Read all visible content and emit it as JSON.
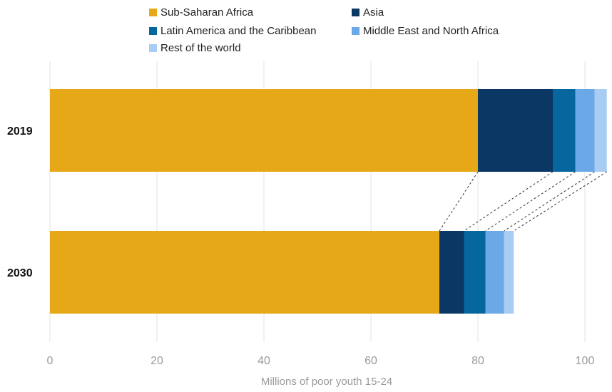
{
  "chart_data": {
    "type": "bar",
    "orientation": "horizontal",
    "stacked": true,
    "categories": [
      "2019",
      "2030"
    ],
    "series": [
      {
        "name": "Sub-Saharan Africa",
        "color": "#E6A817",
        "values": [
          80.0,
          72.8
        ]
      },
      {
        "name": "Asia",
        "color": "#0A3764",
        "values": [
          14.0,
          4.6
        ]
      },
      {
        "name": "Latin America and the Caribbean",
        "color": "#06679F",
        "values": [
          4.2,
          4.0
        ]
      },
      {
        "name": "Middle East and North Africa",
        "color": "#6AA8E8",
        "values": [
          3.6,
          3.5
        ]
      },
      {
        "name": "Rest of the world",
        "color": "#A9CDF2",
        "values": [
          2.3,
          1.8
        ]
      }
    ],
    "xlabel": "Millions of poor youth 15-24",
    "xlim": [
      0,
      104
    ],
    "xticks": [
      0,
      20,
      40,
      60,
      80,
      100
    ],
    "grid": "vertical",
    "legend_position": "top",
    "connectors": "dashed"
  }
}
